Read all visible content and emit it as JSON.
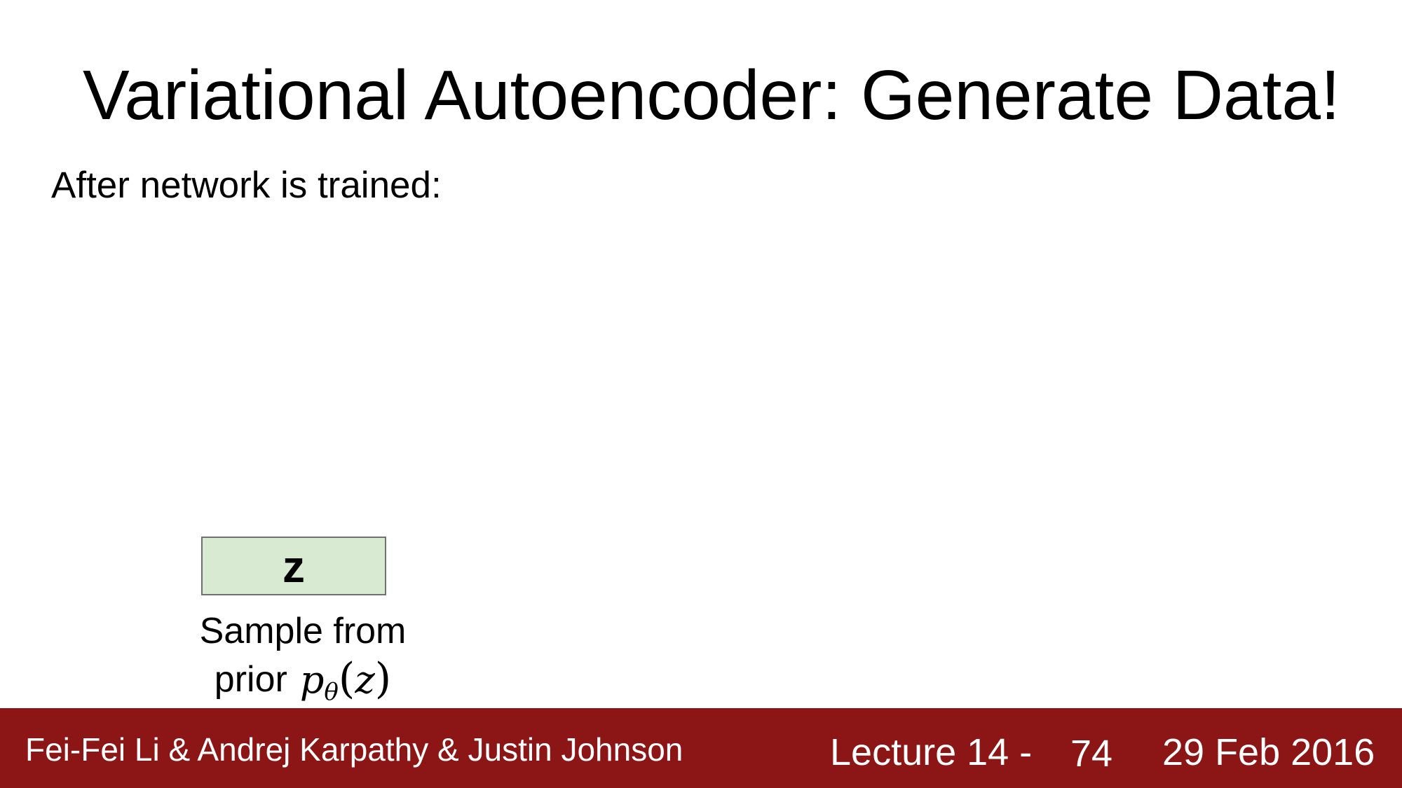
{
  "slide": {
    "title": "Variational Autoencoder: Generate Data!",
    "subtitle": "After network is trained:"
  },
  "diagram": {
    "z_box_label": "z",
    "caption_line1": "Sample from",
    "caption_line2": "prior",
    "formula": {
      "symbol": "p",
      "subscript": "θ",
      "open": "(",
      "arg": "z",
      "close": ")"
    },
    "colors": {
      "z_box_fill": "#d9ead3",
      "z_box_border": "#707070"
    }
  },
  "footer": {
    "authors": "Fei-Fei Li & Andrej Karpathy & Justin Johnson",
    "lecture": "Lecture 14 -",
    "page_number": "74",
    "date": "29 Feb 2016",
    "background_color": "#8c1515"
  }
}
